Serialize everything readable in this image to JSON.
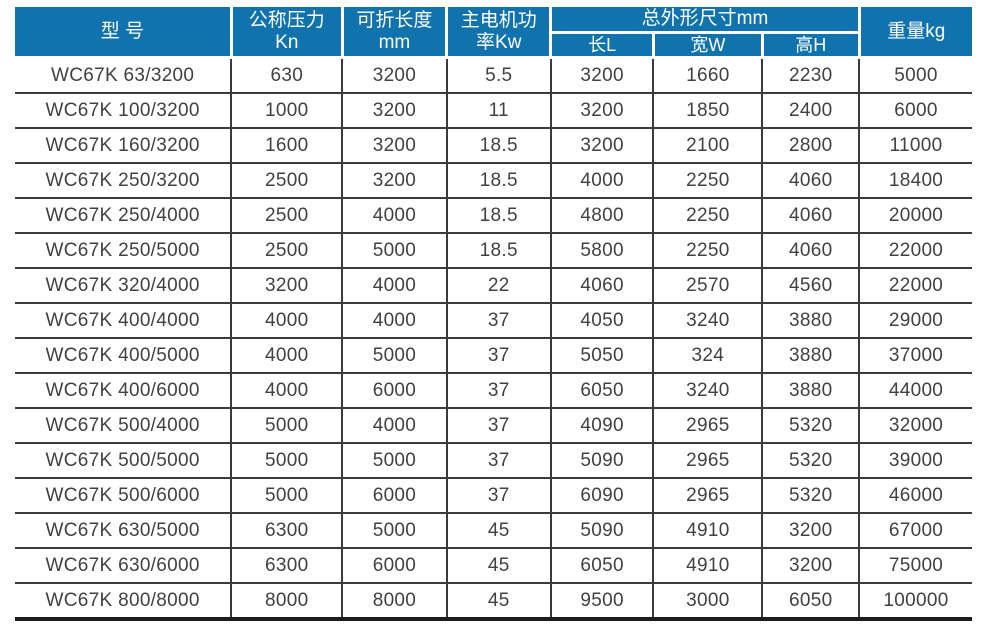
{
  "colors": {
    "header_bg": "#1173ad",
    "header_text": "#ffffff",
    "body_text": "#414141",
    "grid_line": "#3b3b3b",
    "bottom_rule": "#1d1d1d"
  },
  "table": {
    "header": {
      "model": "型 号",
      "pressure_line1": "公称压力",
      "pressure_line2": "Kn",
      "length_line1": "可折长度",
      "length_line2": "mm",
      "power_line1": "主电机功",
      "power_line2": "率Kw",
      "dimensions_group": "总外形尺寸mm",
      "dim_length": "长L",
      "dim_width": "宽W",
      "dim_height": "高H",
      "weight": "重量kg"
    },
    "rows": [
      [
        "WC67K 63/3200",
        "630",
        "3200",
        "5.5",
        "3200",
        "1660",
        "2230",
        "5000"
      ],
      [
        "WC67K 100/3200",
        "1000",
        "3200",
        "11",
        "3200",
        "1850",
        "2400",
        "6000"
      ],
      [
        "WC67K 160/3200",
        "1600",
        "3200",
        "18.5",
        "3200",
        "2100",
        "2800",
        "11000"
      ],
      [
        "WC67K 250/3200",
        "2500",
        "3200",
        "18.5",
        "4000",
        "2250",
        "4060",
        "18400"
      ],
      [
        "WC67K 250/4000",
        "2500",
        "4000",
        "18.5",
        "4800",
        "2250",
        "4060",
        "20000"
      ],
      [
        "WC67K 250/5000",
        "2500",
        "5000",
        "18.5",
        "5800",
        "2250",
        "4060",
        "22000"
      ],
      [
        "WC67K 320/4000",
        "3200",
        "4000",
        "22",
        "4060",
        "2570",
        "4560",
        "22000"
      ],
      [
        "WC67K 400/4000",
        "4000",
        "4000",
        "37",
        "4050",
        "3240",
        "3880",
        "29000"
      ],
      [
        "WC67K 400/5000",
        "4000",
        "5000",
        "37",
        "5050",
        "324",
        "3880",
        "37000"
      ],
      [
        "WC67K 400/6000",
        "4000",
        "6000",
        "37",
        "6050",
        "3240",
        "3880",
        "44000"
      ],
      [
        "WC67K 500/4000",
        "5000",
        "4000",
        "37",
        "4090",
        "2965",
        "5320",
        "32000"
      ],
      [
        "WC67K 500/5000",
        "5000",
        "5000",
        "37",
        "5090",
        "2965",
        "5320",
        "39000"
      ],
      [
        "WC67K 500/6000",
        "5000",
        "6000",
        "37",
        "6090",
        "2965",
        "5320",
        "46000"
      ],
      [
        "WC67K 630/5000",
        "6300",
        "5000",
        "45",
        "5090",
        "4910",
        "3200",
        "67000"
      ],
      [
        "WC67K 630/6000",
        "6300",
        "6000",
        "45",
        "6050",
        "4910",
        "3200",
        "75000"
      ],
      [
        "WC67K 800/8000",
        "8000",
        "8000",
        "45",
        "9500",
        "3000",
        "6050",
        "100000"
      ]
    ],
    "cell_names": [
      "cell-model",
      "cell-nominal-pressure",
      "cell-fold-length",
      "cell-motor-power",
      "cell-dim-length",
      "cell-dim-width",
      "cell-dim-height",
      "cell-weight"
    ]
  }
}
